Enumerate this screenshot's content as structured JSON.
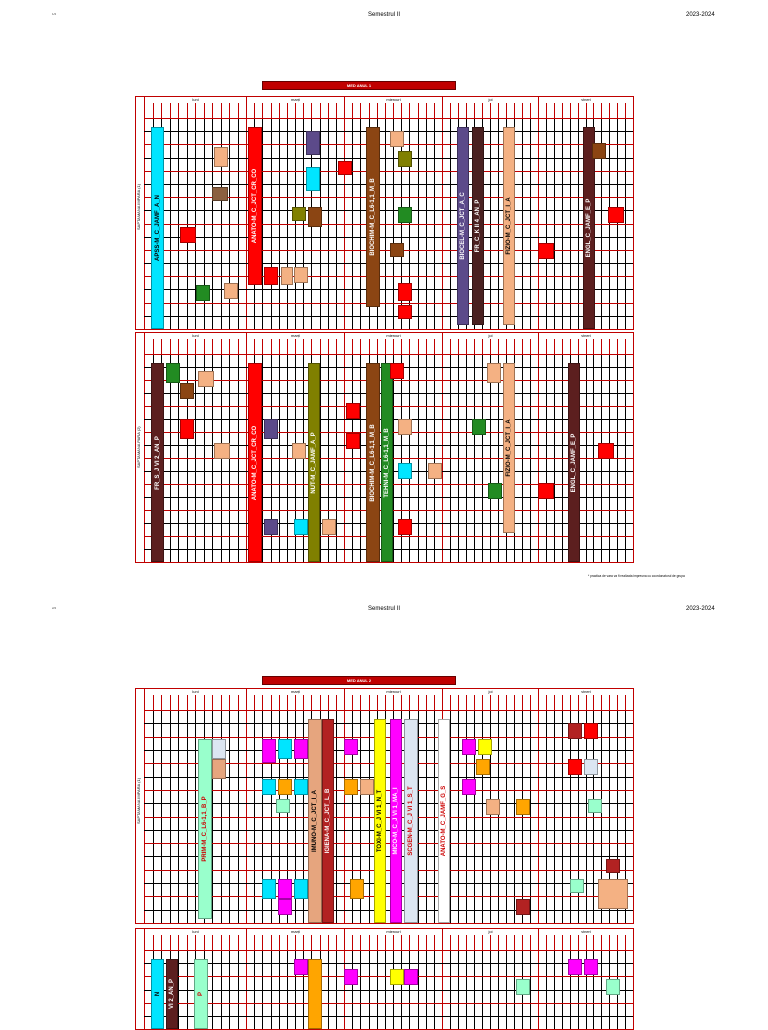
{
  "page1": {
    "corner": "1/2",
    "title": "Semestrul II",
    "year": "2023-2024",
    "banner": "MED ANUL 1",
    "week1": "SAPTAMANA IMPARA (1)",
    "week2": "SAPTAMANA PARA (2)",
    "days": [
      "luni",
      "marți",
      "miercuri",
      "joi",
      "vineri"
    ],
    "bars1": [
      {
        "text": "APSS-M_C_JAMF_A_N",
        "color": "#00e5ff",
        "fg": "#000"
      },
      {
        "text": "ANATO-M_C_JCT_CR_CO",
        "color": "#ff0000",
        "fg": "#ffffff"
      },
      {
        "text": "BIOCHIM-M_C_L6-1,1_M_B",
        "color": "#8b4513",
        "fg": "#ffffff"
      },
      {
        "text": "BIOCEL-M_C_JCT_A_C",
        "color": "#5c4a8a",
        "fg": "#ffffff"
      },
      {
        "text": "FR_C_K II 4_AN_P",
        "color": "#4a2020",
        "fg": "#ffffff"
      },
      {
        "text": "FIZIO-M_C_JCT_I_A",
        "color": "#f4b183",
        "fg": "#000"
      },
      {
        "text": "ENGL_C_JAMF_E_P",
        "color": "#5c1f1f",
        "fg": "#ffffff"
      }
    ],
    "bars2": [
      {
        "text": "FR_S_J VI 2_AN_P",
        "color": "#5c1f1f",
        "fg": "#ffffff"
      },
      {
        "text": "ANATO-M_C_JCT_CR_CO",
        "color": "#ff0000",
        "fg": "#ffffff"
      },
      {
        "text": "NUT-M_C_JAMF_A_P",
        "color": "#808000",
        "fg": "#ffffff"
      },
      {
        "text": "BIOCHIM-M_C_L6-1,1_M_B",
        "color": "#8b4513",
        "fg": "#ffffff"
      },
      {
        "text": "TEHNI-M_C_L6-1,1_M_B",
        "color": "#228b22",
        "fg": "#ffffff"
      },
      {
        "text": "FIZIO-M_C_JCT_I_A",
        "color": "#f4b183",
        "fg": "#000"
      },
      {
        "text": "ENGL_C_JAMF_E_P",
        "color": "#5c1f1f",
        "fg": "#ffffff"
      }
    ],
    "footnote": "* practica de vara va fi realizata impreuna cu coordonatorul de grupa"
  },
  "page2": {
    "corner": "2/2",
    "title": "Semestrul II",
    "year": "2023-2024",
    "banner": "MED ANUL 2",
    "week1": "SAPTAMANA IMPARA (1)",
    "days": [
      "luni",
      "marți",
      "miercuri",
      "joi",
      "vineri"
    ],
    "bars1": [
      {
        "text": "PRIM-M_C_L6-1,1_B_P",
        "color": "#99ffcc",
        "fg": "#cc0000"
      },
      {
        "text": "IMUNO-M_C_JCT_I_A",
        "color": "#e6a57e",
        "fg": "#000"
      },
      {
        "text": "IGIENA-M_C_JCT_L_B",
        "color": "#b22222",
        "fg": "#ffffff"
      },
      {
        "text": "TOXI-M_C_J VI 1_N_T",
        "color": "#ffff00",
        "fg": "#000"
      },
      {
        "text": "MICO-M_C_J VI 1_MA_I",
        "color": "#ff00ff",
        "fg": "#ffffff"
      },
      {
        "text": "SCGEN-M_C_J VI 1_S_T",
        "color": "#dce6f2",
        "fg": "#cc0000"
      },
      {
        "text": "ANATO-M_C_JAMF_G_S",
        "color": "#ffffff",
        "fg": "#cc0000"
      }
    ],
    "bars2": [
      {
        "text": "N",
        "color": "#00e5ff",
        "fg": "#000"
      },
      {
        "text": "VI 2_AN_P",
        "color": "#5c1f1f",
        "fg": "#ffffff"
      },
      {
        "text": "P",
        "color": "#99ffcc",
        "fg": "#cc0000"
      }
    ]
  },
  "colors": {
    "grid": "#c00000",
    "banner": "#c00000"
  }
}
